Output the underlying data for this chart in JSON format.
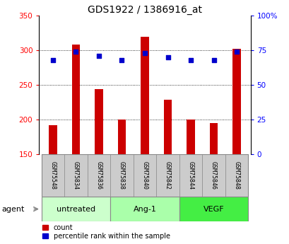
{
  "title": "GDS1922 / 1386916_at",
  "samples": [
    "GSM75548",
    "GSM75834",
    "GSM75836",
    "GSM75838",
    "GSM75840",
    "GSM75842",
    "GSM75844",
    "GSM75846",
    "GSM75848"
  ],
  "counts": [
    192,
    308,
    244,
    200,
    320,
    228,
    200,
    195,
    302
  ],
  "percentiles": [
    68,
    74,
    71,
    68,
    73,
    70,
    68,
    68,
    74
  ],
  "groups": [
    {
      "label": "untreated",
      "indices": [
        0,
        1,
        2
      ],
      "color": "#ccffcc"
    },
    {
      "label": "Ang-1",
      "indices": [
        3,
        4,
        5
      ],
      "color": "#aaffaa"
    },
    {
      "label": "VEGF",
      "indices": [
        6,
        7,
        8
      ],
      "color": "#44ee44"
    }
  ],
  "bar_color": "#cc0000",
  "scatter_color": "#0000cc",
  "ylim_left": [
    150,
    350
  ],
  "ylim_right": [
    0,
    100
  ],
  "yticks_left": [
    150,
    200,
    250,
    300,
    350
  ],
  "yticks_right": [
    0,
    25,
    50,
    75,
    100
  ],
  "ytick_labels_right": [
    "0",
    "25",
    "50",
    "75",
    "100%"
  ],
  "grid_values": [
    200,
    250,
    300
  ],
  "bar_width": 0.35,
  "background_color": "#ffffff",
  "plot_bg": "#ffffff",
  "sample_box_color": "#cccccc",
  "agent_label": "agent"
}
